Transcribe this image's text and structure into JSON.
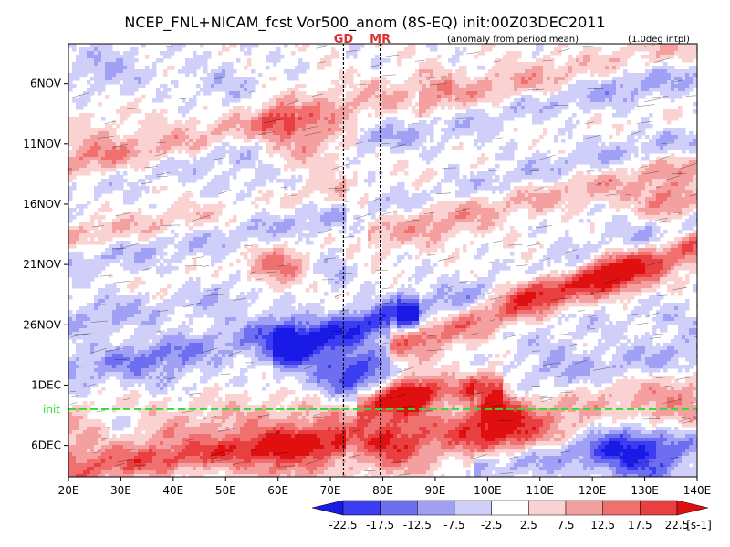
{
  "chart_data": {
    "type": "heatmap",
    "title": "NCEP_FNL+NICAM_fcst Vor500_anom (8S-EQ) init:00Z03DEC2011",
    "subtitle_left": "(anomaly from period mean)",
    "subtitle_right": "(1.0deg intpl)",
    "x_ticks": [
      "20E",
      "30E",
      "40E",
      "50E",
      "60E",
      "70E",
      "80E",
      "90E",
      "100E",
      "110E",
      "120E",
      "130E",
      "140E"
    ],
    "x_values": [
      20,
      30,
      40,
      50,
      60,
      70,
      80,
      90,
      100,
      110,
      120,
      130,
      140
    ],
    "xlim": [
      20,
      140
    ],
    "y_ticks": [
      "6NOV",
      "11NOV",
      "16NOV",
      "21NOV",
      "26NOV",
      "1DEC",
      "6DEC"
    ],
    "y_values": [
      6,
      11,
      16,
      21,
      26,
      31,
      36
    ],
    "ylim_day_index": [
      2.7,
      38.6
    ],
    "y_direction": "downward",
    "markers": [
      {
        "label": "GD",
        "lon": 72.5,
        "color": "#e03030"
      },
      {
        "label": "MR",
        "lon": 79.5,
        "color": "#e03030"
      }
    ],
    "init_line": {
      "label": "init",
      "day_index": 33,
      "color": "#2ee02e"
    },
    "colorbar": {
      "labels": [
        "-22.5",
        "-17.5",
        "-12.5",
        "-7.5",
        "-2.5",
        "2.5",
        "7.5",
        "12.5",
        "17.5",
        "22.5"
      ],
      "unit": "[s-1]",
      "colors": [
        "#1a1ae6",
        "#3c3cf0",
        "#6e6ef0",
        "#a0a0f5",
        "#cfcffa",
        "#ffffff",
        "#fad2d2",
        "#f5a0a0",
        "#f07070",
        "#e84040",
        "#e01010"
      ]
    },
    "bands": [
      {
        "lonA": 20,
        "dayA": 13,
        "lonB": 60,
        "dayB": 9,
        "w": 1.6,
        "v": 10
      },
      {
        "lonA": 20,
        "dayA": 14.6,
        "lonB": 60,
        "dayB": 10.8,
        "w": 1.2,
        "v": -6
      },
      {
        "lonA": 60,
        "dayA": 9,
        "lonB": 90,
        "dayB": 6,
        "w": 1.4,
        "v": 6
      },
      {
        "lonA": 90,
        "dayA": 7.5,
        "lonB": 140,
        "dayB": 2.7,
        "w": 1.6,
        "v": 9
      },
      {
        "lonA": 78,
        "dayA": 10.5,
        "lonB": 140,
        "dayB": 5,
        "w": 1.4,
        "v": -8
      },
      {
        "lonA": 20,
        "dayA": 19,
        "lonB": 70,
        "dayB": 15,
        "w": 1.4,
        "v": 7
      },
      {
        "lonA": 20,
        "dayA": 20.7,
        "lonB": 70,
        "dayB": 17.2,
        "w": 1.4,
        "v": -8
      },
      {
        "lonA": 80,
        "dayA": 18.5,
        "lonB": 140,
        "dayB": 12.5,
        "w": 1.4,
        "v": 8
      },
      {
        "lonA": 80,
        "dayA": 16.2,
        "lonB": 140,
        "dayB": 10.5,
        "w": 1.2,
        "v": -7
      },
      {
        "lonA": 20,
        "dayA": 26,
        "lonB": 70,
        "dayB": 21.5,
        "w": 1.6,
        "v": -7
      },
      {
        "lonA": 84,
        "dayA": 27.5,
        "lonB": 140,
        "dayB": 19.5,
        "w": 1.6,
        "v": 18
      },
      {
        "lonA": 86,
        "dayA": 25.2,
        "lonB": 140,
        "dayB": 17.5,
        "w": 1.4,
        "v": -10
      },
      {
        "lonA": 62,
        "dayA": 28,
        "lonB": 84,
        "dayB": 25,
        "w": 1.4,
        "v": -20
      },
      {
        "lonA": 20,
        "dayA": 30,
        "lonB": 60,
        "dayB": 26.5,
        "w": 1.4,
        "v": -9
      },
      {
        "lonA": 78,
        "dayA": 32.5,
        "lonB": 100,
        "dayB": 31,
        "w": 1.2,
        "v": 19
      },
      {
        "lonA": 100,
        "dayA": 32,
        "lonB": 140,
        "dayB": 28,
        "w": 1.4,
        "v": -8
      },
      {
        "lonA": 20,
        "dayA": 36,
        "lonB": 140,
        "dayB": 33,
        "w": 2.4,
        "v": 10
      },
      {
        "lonA": 20,
        "dayA": 38.2,
        "lonB": 70,
        "dayB": 35.6,
        "w": 1.2,
        "v": 14
      },
      {
        "lonA": 100,
        "dayA": 37.5,
        "lonB": 140,
        "dayB": 35.5,
        "w": 1.4,
        "v": -12
      }
    ],
    "blobs": [
      {
        "lon": 27,
        "day": 5,
        "r": 5,
        "v": -7
      },
      {
        "lon": 50,
        "day": 7,
        "r": 6,
        "v": -6
      },
      {
        "lon": 125,
        "day": 5,
        "r": 7,
        "v": -4
      },
      {
        "lon": 25,
        "day": 11,
        "r": 4,
        "v": 6
      },
      {
        "lon": 64,
        "day": 10.5,
        "r": 5,
        "v": 14
      },
      {
        "lon": 56,
        "day": 14.5,
        "r": 6,
        "v": -5
      },
      {
        "lon": 135,
        "day": 16,
        "r": 4,
        "v": 14
      },
      {
        "lon": 90,
        "day": 17,
        "r": 6,
        "v": 4
      },
      {
        "lon": 60,
        "day": 21.5,
        "r": 4,
        "v": 19
      },
      {
        "lon": 124,
        "day": 21.5,
        "r": 4,
        "v": 19
      },
      {
        "lon": 108,
        "day": 22.8,
        "r": 4,
        "v": 14
      },
      {
        "lon": 62,
        "day": 27.5,
        "r": 4,
        "v": -17
      },
      {
        "lon": 75,
        "day": 30,
        "r": 5,
        "v": -22
      },
      {
        "lon": 86,
        "day": 31.5,
        "r": 4,
        "v": 20
      },
      {
        "lon": 92,
        "day": 32,
        "r": 4,
        "v": -14
      },
      {
        "lon": 101,
        "day": 32.3,
        "r": 3,
        "v": 15
      },
      {
        "lon": 38,
        "day": 29.5,
        "r": 5,
        "v": -6
      },
      {
        "lon": 112,
        "day": 29,
        "r": 5,
        "v": -5
      },
      {
        "lon": 102,
        "day": 34.8,
        "r": 5,
        "v": 18
      },
      {
        "lon": 82,
        "day": 36.5,
        "r": 5,
        "v": 15
      },
      {
        "lon": 62,
        "day": 37.5,
        "r": 5,
        "v": 13
      },
      {
        "lon": 124,
        "day": 35,
        "r": 4,
        "v": -13
      },
      {
        "lon": 130,
        "day": 37.5,
        "r": 5,
        "v": -16
      },
      {
        "lon": 30,
        "day": 34.5,
        "r": 3,
        "v": -9
      },
      {
        "lon": 40,
        "day": 23.5,
        "r": 4,
        "v": 5
      }
    ]
  }
}
